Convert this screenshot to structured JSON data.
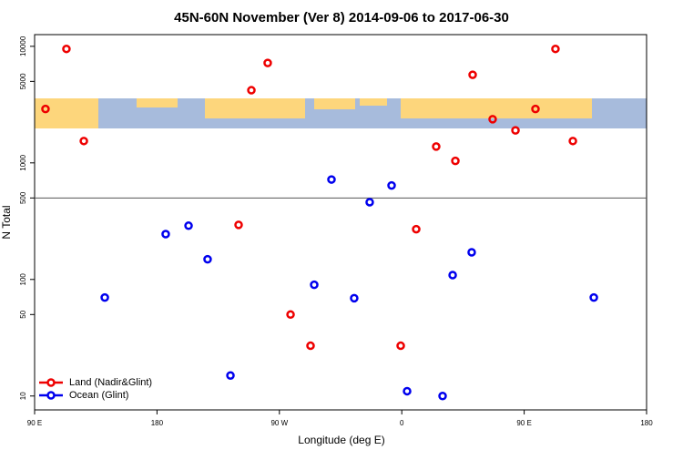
{
  "chart_data": {
    "type": "scatter",
    "title": "45N-60N November (Ver 8)   2014-09-06 to 2017-06-30",
    "x_label": "Longitude (deg E)",
    "y_label": "N Total",
    "log_y": true,
    "xlim": [
      90,
      540
    ],
    "ylim": [
      7.6,
      12600
    ],
    "xticks": [
      {
        "value": 90,
        "label": "90 E"
      },
      {
        "value": 180,
        "label": "180"
      },
      {
        "value": 270,
        "label": "90 W"
      },
      {
        "value": 360,
        "label": "0"
      },
      {
        "value": 450,
        "label": "90 E"
      },
      {
        "value": 540,
        "label": "180"
      }
    ],
    "yticks": [
      10,
      50,
      100,
      500,
      1000,
      5000,
      10000
    ],
    "reference_line": 500,
    "legend": "bottom-left",
    "series": [
      {
        "name": "Land (Nadir&Glint)",
        "color": "#ee0000",
        "x": [
          98,
          113.4,
          126.2,
          240,
          249.4,
          261.4,
          278.2,
          292.9,
          359.2,
          370.6,
          385.3,
          399.4,
          412.1,
          426.8,
          443.6,
          458.3,
          473,
          485.8
        ],
        "values": [
          2900,
          9500,
          1540,
          294,
          4200,
          7200,
          50,
          27,
          27,
          270,
          1380,
          1040,
          5700,
          2370,
          1900,
          2900,
          9500,
          1540
        ]
      },
      {
        "name": "Ocean (Glint)",
        "color": "#0000ee",
        "x": [
          141.6,
          186.4,
          203.2,
          217.2,
          234,
          295.6,
          308.3,
          325,
          336.4,
          352.5,
          363.9,
          390,
          397.4,
          411.4,
          501.2
        ],
        "values": [
          70,
          245,
          289,
          149,
          15,
          90,
          720,
          69,
          460,
          640,
          11,
          10,
          109,
          171,
          70
        ]
      }
    ]
  }
}
